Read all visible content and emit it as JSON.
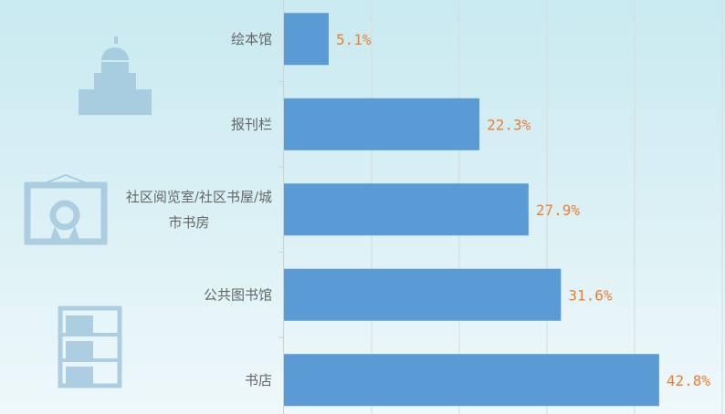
{
  "chart_data": {
    "type": "bar",
    "orientation": "horizontal",
    "categories": [
      "绘本馆",
      "报刊栏",
      "社区阅览室/社区书屋/城市书房",
      "公共图书馆",
      "书店"
    ],
    "category_lines": [
      [
        "绘本馆"
      ],
      [
        "报刊栏"
      ],
      [
        "社区阅览室/社区书屋/城",
        "市书房"
      ],
      [
        "公共图书馆"
      ],
      [
        "书店"
      ]
    ],
    "values": [
      5.1,
      22.3,
      27.9,
      31.6,
      42.8
    ],
    "data_labels": [
      "5.1%",
      "22.3%",
      "27.9%",
      "31.6%",
      "42.8%"
    ],
    "unit": "%",
    "xlim": [
      0,
      50
    ],
    "grid": true,
    "colors": {
      "bar": "#5b9bd5",
      "label": "#ed7d31",
      "category": "#666666",
      "grid": "#d9d9d9",
      "icon": "#9fc5dc"
    },
    "icons": [
      "library-building-icon",
      "certificate-icon",
      "bookshelf-icon"
    ]
  }
}
